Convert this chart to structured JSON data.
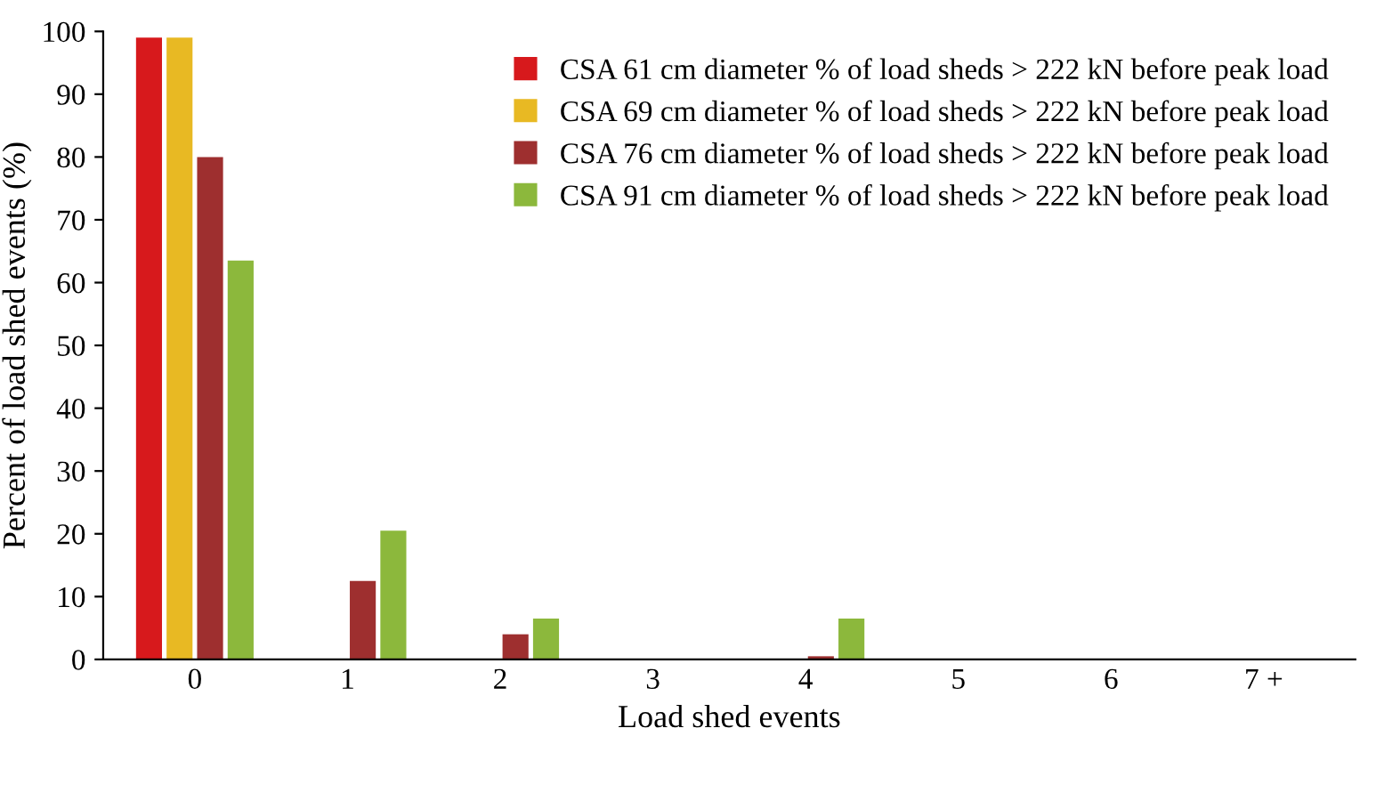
{
  "chart_data": {
    "type": "bar",
    "xlabel": "Load shed events",
    "ylabel": "Percent of load shed events (%)",
    "categories": [
      "0",
      "1",
      "2",
      "3",
      "4",
      "5",
      "6",
      "7 +"
    ],
    "series": [
      {
        "name": "CSA 61 cm diameter % of load sheds > 222 kN before peak load",
        "color": "#d7191c",
        "values": [
          99,
          0,
          0,
          0,
          0,
          0,
          0,
          0
        ]
      },
      {
        "name": "CSA 69 cm diameter % of load sheds > 222 kN before peak load",
        "color": "#e8b923",
        "values": [
          99,
          0,
          0,
          0,
          0,
          0,
          0,
          0
        ]
      },
      {
        "name": "CSA 76 cm diameter % of load sheds > 222 kN before peak load",
        "color": "#9e2f2f",
        "values": [
          80,
          12.5,
          4,
          0,
          0.5,
          0,
          0,
          0
        ]
      },
      {
        "name": "CSA 91 cm diameter % of load sheds > 222 kN before peak load",
        "color": "#8cb83c",
        "values": [
          63.5,
          20.5,
          6.5,
          0,
          6.5,
          0,
          0,
          0
        ]
      }
    ],
    "ylim": [
      0,
      100
    ],
    "yticks": [
      0,
      10,
      20,
      30,
      40,
      50,
      60,
      70,
      80,
      90,
      100
    ],
    "grid": false,
    "legend": "top right"
  }
}
